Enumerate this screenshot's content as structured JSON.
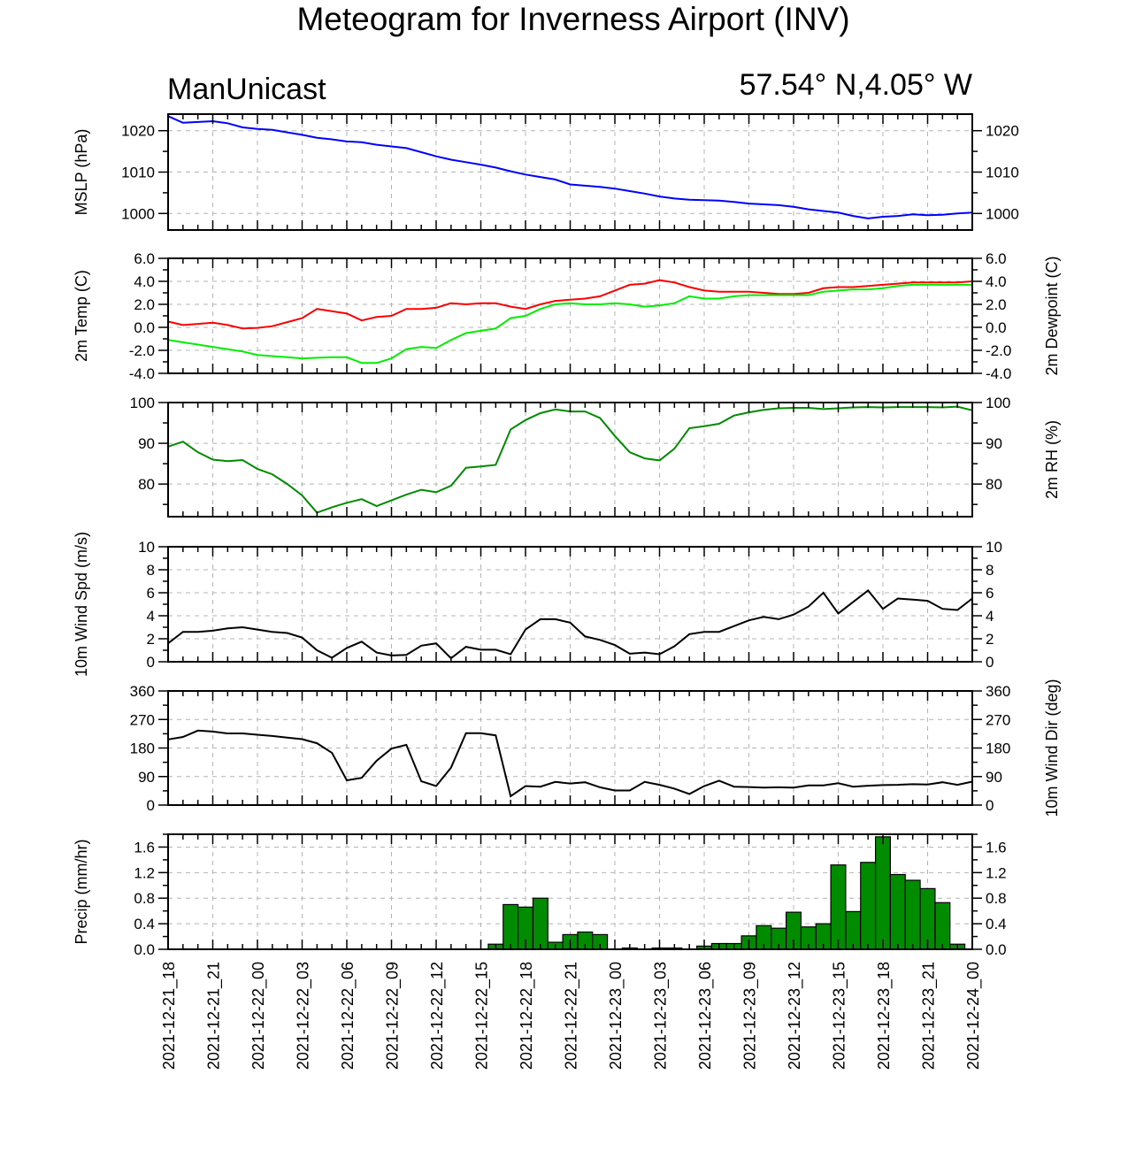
{
  "title": "Meteogram for Inverness Airport (INV)",
  "left_label": "ManUnicast",
  "right_label": "57.54° N,4.05° W",
  "colors": {
    "mslp": "#0000ff",
    "temp": "#ff0000",
    "dewpoint": "#00ee00",
    "rh": "#008c00",
    "wind": "#000000",
    "precip_fill": "#008b00",
    "grid": "#b4b4b4"
  },
  "x_labels": [
    "2021-12-21_18",
    "2021-12-21_21",
    "2021-12-22_00",
    "2021-12-22_03",
    "2021-12-22_06",
    "2021-12-22_09",
    "2021-12-22_12",
    "2021-12-22_15",
    "2021-12-22_18",
    "2021-12-22_21",
    "2021-12-23_00",
    "2021-12-23_03",
    "2021-12-23_06",
    "2021-12-23_09",
    "2021-12-23_12",
    "2021-12-23_15",
    "2021-12-23_18",
    "2021-12-23_21",
    "2021-12-24_00"
  ],
  "chart_data": [
    {
      "type": "line",
      "ylabel": "MSLP (hPa)",
      "ylim": [
        996,
        1024
      ],
      "yticks": [
        1000,
        1010,
        1020
      ],
      "tick_labels": [
        "1000",
        "1010",
        "1020"
      ],
      "x_hours": [
        0,
        1,
        2,
        3,
        4,
        5,
        6,
        7,
        8,
        9,
        10,
        11,
        12,
        13,
        14,
        15,
        16,
        17,
        18,
        19,
        20,
        21,
        22,
        23,
        24,
        25,
        26,
        27,
        28,
        29,
        30,
        31,
        32,
        33,
        34,
        35,
        36,
        37,
        38,
        39,
        40,
        41,
        42,
        43,
        44,
        45,
        46,
        47,
        48,
        49,
        50,
        51,
        52,
        53,
        54
      ],
      "series": [
        {
          "key": "mslp",
          "values": [
            1023.5,
            1021.9,
            1022.1,
            1022.3,
            1021.8,
            1020.8,
            1020.4,
            1020.2,
            1019.6,
            1019.0,
            1018.3,
            1017.9,
            1017.4,
            1017.2,
            1016.6,
            1016.2,
            1015.8,
            1014.8,
            1013.8,
            1013.0,
            1012.4,
            1011.8,
            1011.1,
            1010.2,
            1009.4,
            1008.8,
            1008.2,
            1007.0,
            1006.7,
            1006.4,
            1006.0,
            1005.4,
            1004.8,
            1004.1,
            1003.6,
            1003.3,
            1003.2,
            1003.1,
            1002.8,
            1002.4,
            1002.2,
            1002.0,
            1001.6,
            1001.0,
            1000.6,
            1000.2,
            999.4,
            998.8,
            999.2,
            999.4,
            999.8,
            999.6,
            999.7,
            1000.0,
            1000.2
          ]
        }
      ]
    },
    {
      "type": "line",
      "ylabel": "2m Temp (C)",
      "ylabel_right": "2m Dewpoint (C)",
      "ylim": [
        -4,
        6
      ],
      "yticks": [
        -4,
        -2,
        0,
        2,
        4,
        6
      ],
      "tick_labels": [
        "-4.0",
        "-2.0",
        "0.0",
        "2.0",
        "4.0",
        "6.0"
      ],
      "x_hours": [
        0,
        1,
        2,
        3,
        4,
        5,
        6,
        7,
        8,
        9,
        10,
        11,
        12,
        13,
        14,
        15,
        16,
        17,
        18,
        19,
        20,
        21,
        22,
        23,
        24,
        25,
        26,
        27,
        28,
        29,
        30,
        31,
        32,
        33,
        34,
        35,
        36,
        37,
        38,
        39,
        40,
        41,
        42,
        43,
        44,
        45,
        46,
        47,
        48,
        49,
        50,
        51,
        52,
        53,
        54
      ],
      "series": [
        {
          "key": "temp",
          "values": [
            0.5,
            0.2,
            0.3,
            0.4,
            0.2,
            -0.1,
            -0.05,
            0.1,
            0.45,
            0.8,
            1.6,
            1.4,
            1.2,
            0.6,
            0.9,
            1.0,
            1.6,
            1.6,
            1.7,
            2.1,
            2.0,
            2.1,
            2.1,
            1.8,
            1.6,
            2.0,
            2.3,
            2.4,
            2.5,
            2.7,
            3.2,
            3.7,
            3.8,
            4.1,
            3.9,
            3.5,
            3.2,
            3.1,
            3.1,
            3.1,
            3.0,
            2.9,
            2.9,
            3.0,
            3.4,
            3.5,
            3.5,
            3.6,
            3.7,
            3.8,
            3.9,
            3.9,
            3.9,
            3.9,
            4.0
          ]
        },
        {
          "key": "dewpoint",
          "values": [
            -1.1,
            -1.3,
            -1.5,
            -1.7,
            -1.9,
            -2.1,
            -2.4,
            -2.5,
            -2.6,
            -2.7,
            -2.65,
            -2.6,
            -2.6,
            -3.1,
            -3.1,
            -2.7,
            -1.9,
            -1.7,
            -1.8,
            -1.1,
            -0.5,
            -0.3,
            -0.1,
            0.8,
            1.0,
            1.6,
            2.0,
            2.1,
            2.0,
            2.0,
            2.1,
            2.0,
            1.8,
            1.9,
            2.1,
            2.7,
            2.5,
            2.5,
            2.7,
            2.8,
            2.8,
            2.8,
            2.8,
            2.8,
            3.1,
            3.2,
            3.3,
            3.3,
            3.4,
            3.6,
            3.7,
            3.7,
            3.7,
            3.7,
            3.7
          ]
        }
      ]
    },
    {
      "type": "line",
      "ylabel_right": "2m RH (%)",
      "ylim": [
        72,
        100
      ],
      "yticks": [
        80,
        90,
        100
      ],
      "tick_labels": [
        "80",
        "90",
        "100"
      ],
      "x_hours": [
        0,
        1,
        2,
        3,
        4,
        5,
        6,
        7,
        8,
        9,
        10,
        11,
        12,
        13,
        14,
        15,
        16,
        17,
        18,
        19,
        20,
        21,
        22,
        23,
        24,
        25,
        26,
        27,
        28,
        29,
        30,
        31,
        32,
        33,
        34,
        35,
        36,
        37,
        38,
        39,
        40,
        41,
        42,
        43,
        44,
        45,
        46,
        47,
        48,
        49,
        50,
        51,
        52,
        53,
        54
      ],
      "series": [
        {
          "key": "rh",
          "values": [
            89.2,
            90.4,
            87.8,
            86.0,
            85.6,
            85.9,
            83.7,
            82.4,
            80.0,
            77.2,
            73.0,
            74.3,
            75.4,
            76.3,
            74.6,
            76.0,
            77.4,
            78.6,
            78.0,
            79.6,
            84.0,
            84.3,
            84.7,
            93.4,
            95.7,
            97.4,
            98.3,
            97.8,
            97.8,
            96.2,
            91.8,
            87.8,
            86.3,
            85.8,
            88.7,
            93.7,
            94.2,
            94.8,
            96.8,
            97.6,
            98.2,
            98.6,
            98.7,
            98.7,
            98.4,
            98.6,
            98.8,
            98.9,
            98.8,
            98.9,
            98.9,
            98.9,
            98.8,
            99.0,
            98.1
          ]
        }
      ]
    },
    {
      "type": "line",
      "ylabel": "10m Wind Spd (m/s)",
      "ylim": [
        0,
        10
      ],
      "yticks": [
        0,
        2,
        4,
        6,
        8,
        10
      ],
      "tick_labels": [
        "0",
        "2",
        "4",
        "6",
        "8",
        "10"
      ],
      "x_hours": [
        0,
        1,
        2,
        3,
        4,
        5,
        6,
        7,
        8,
        9,
        10,
        11,
        12,
        13,
        14,
        15,
        16,
        17,
        18,
        19,
        20,
        21,
        22,
        23,
        24,
        25,
        26,
        27,
        28,
        29,
        30,
        31,
        32,
        33,
        34,
        35,
        36,
        37,
        38,
        39,
        40,
        41,
        42,
        43,
        44,
        45,
        46,
        47,
        48,
        49,
        50,
        51,
        52,
        53,
        54
      ],
      "series": [
        {
          "key": "wind",
          "values": [
            1.6,
            2.6,
            2.6,
            2.7,
            2.9,
            3.0,
            2.8,
            2.6,
            2.5,
            2.1,
            1.0,
            0.35,
            1.2,
            1.75,
            0.8,
            0.55,
            0.6,
            1.4,
            1.6,
            0.3,
            1.3,
            1.05,
            1.05,
            0.65,
            2.8,
            3.7,
            3.7,
            3.4,
            2.2,
            1.9,
            1.45,
            0.7,
            0.8,
            0.65,
            1.35,
            2.4,
            2.6,
            2.6,
            3.1,
            3.6,
            3.9,
            3.7,
            4.1,
            4.8,
            6.0,
            4.2,
            5.2,
            6.2,
            4.6,
            5.5,
            5.4,
            5.3,
            4.6,
            4.5,
            5.5
          ]
        }
      ]
    },
    {
      "type": "line",
      "ylabel_right": "10m Wind Dir (deg)",
      "ylim": [
        0,
        360
      ],
      "yticks": [
        0,
        90,
        180,
        270,
        360
      ],
      "tick_labels": [
        "0",
        "90",
        "180",
        "270",
        "360"
      ],
      "x_hours": [
        0,
        1,
        2,
        3,
        4,
        5,
        6,
        7,
        8,
        9,
        10,
        11,
        12,
        13,
        14,
        15,
        16,
        17,
        18,
        19,
        20,
        21,
        22,
        23,
        24,
        25,
        26,
        27,
        28,
        29,
        30,
        31,
        32,
        33,
        34,
        35,
        36,
        37,
        38,
        39,
        40,
        41,
        42,
        43,
        44,
        45,
        46,
        47,
        48,
        49,
        50,
        51,
        52,
        53,
        54
      ],
      "series": [
        {
          "key": "wind",
          "values": [
            207,
            215,
            235,
            232,
            226,
            226,
            222,
            218,
            213,
            208,
            195,
            165,
            78,
            86,
            140,
            178,
            190,
            75,
            60,
            118,
            227,
            227,
            220,
            28,
            60,
            58,
            73,
            68,
            72,
            56,
            46,
            46,
            73,
            64,
            52,
            35,
            60,
            77,
            58,
            57,
            55,
            56,
            55,
            62,
            62,
            69,
            58,
            61,
            63,
            64,
            66,
            65,
            72,
            64,
            74
          ]
        }
      ]
    },
    {
      "type": "bar",
      "ylabel": "Precip (mm/hr)",
      "ylim": [
        0,
        1.8
      ],
      "yticks": [
        0,
        0.4,
        0.8,
        1.2,
        1.6
      ],
      "tick_labels": [
        "0.0",
        "0.4",
        "0.8",
        "1.2",
        "1.6"
      ],
      "x_hours": [
        0,
        1,
        2,
        3,
        4,
        5,
        6,
        7,
        8,
        9,
        10,
        11,
        12,
        13,
        14,
        15,
        16,
        17,
        18,
        19,
        20,
        21,
        22,
        23,
        24,
        25,
        26,
        27,
        28,
        29,
        30,
        31,
        32,
        33,
        34,
        35,
        36,
        37,
        38,
        39,
        40,
        41,
        42,
        43,
        44,
        45,
        46,
        47,
        48,
        49,
        50,
        51,
        52,
        53,
        54
      ],
      "values": [
        0,
        0,
        0,
        0,
        0,
        0,
        0,
        0,
        0,
        0,
        0,
        0,
        0,
        0,
        0,
        0,
        0,
        0,
        0,
        0,
        0,
        0,
        0.08,
        0.7,
        0.66,
        0.8,
        0.11,
        0.23,
        0.27,
        0.23,
        0,
        0.02,
        0,
        0.02,
        0.02,
        0,
        0.05,
        0.09,
        0.09,
        0.21,
        0.37,
        0.33,
        0.58,
        0.35,
        0.4,
        1.32,
        0.59,
        1.36,
        1.76,
        1.17,
        1.08,
        0.95,
        0.73,
        0.08,
        0
      ]
    }
  ]
}
